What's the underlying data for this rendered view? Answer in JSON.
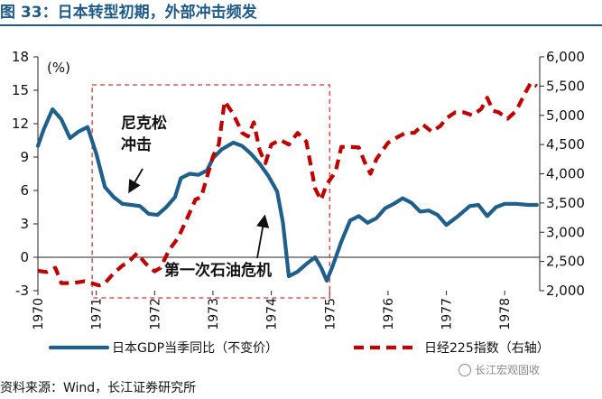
{
  "title": "图 33：日本转型初期，外部冲击频发",
  "source": "资料来源：Wind，长江证券研究所",
  "watermark": "长江宏观固收",
  "colors": {
    "title": "#1e5a8a",
    "gdp": "#1f5f8b",
    "nikkei": "#c00000",
    "box": "#e0322f"
  },
  "chart_data": {
    "type": "line",
    "title": "",
    "x_ticks": [
      "1970",
      "1971",
      "1972",
      "1973",
      "1974",
      "1975",
      "1976",
      "1977",
      "1978"
    ],
    "x_range": [
      1970.0,
      1978.6
    ],
    "y_left": {
      "label": "(%)",
      "range": [
        -3,
        18
      ],
      "ticks": [
        "18",
        "15",
        "12",
        "9",
        "6",
        "3",
        "0",
        "-3"
      ]
    },
    "y_right": {
      "label": "",
      "range": [
        2000,
        6000
      ],
      "ticks": [
        "6,000",
        "5,500",
        "5,000",
        "4,500",
        "4,000",
        "3,500",
        "3,000",
        "2,500",
        "2,000"
      ]
    },
    "series": [
      {
        "name": "日本GDP当季同比（不变价）",
        "axis": "left",
        "style": "solid",
        "points": [
          [
            1970.0,
            10.0
          ],
          [
            1970.1,
            11.5
          ],
          [
            1970.25,
            13.3
          ],
          [
            1970.4,
            12.4
          ],
          [
            1970.55,
            10.7
          ],
          [
            1970.7,
            11.3
          ],
          [
            1970.85,
            11.7
          ],
          [
            1971.0,
            9.3
          ],
          [
            1971.15,
            6.3
          ],
          [
            1971.3,
            5.4
          ],
          [
            1971.45,
            4.8
          ],
          [
            1971.6,
            4.7
          ],
          [
            1971.75,
            4.6
          ],
          [
            1971.9,
            3.9
          ],
          [
            1972.05,
            3.8
          ],
          [
            1972.2,
            4.5
          ],
          [
            1972.35,
            5.4
          ],
          [
            1972.45,
            7.1
          ],
          [
            1972.6,
            7.5
          ],
          [
            1972.75,
            7.4
          ],
          [
            1972.9,
            7.8
          ],
          [
            1973.0,
            8.9
          ],
          [
            1973.15,
            9.7
          ],
          [
            1973.35,
            10.3
          ],
          [
            1973.5,
            10.0
          ],
          [
            1973.65,
            9.3
          ],
          [
            1973.8,
            8.4
          ],
          [
            1973.95,
            7.3
          ],
          [
            1974.1,
            5.9
          ],
          [
            1974.2,
            3.1
          ],
          [
            1974.3,
            -1.7
          ],
          [
            1974.45,
            -1.3
          ],
          [
            1974.6,
            -0.6
          ],
          [
            1974.75,
            0.0
          ],
          [
            1974.85,
            -0.9
          ],
          [
            1974.95,
            -2.1
          ],
          [
            1975.05,
            -0.8
          ],
          [
            1975.2,
            1.4
          ],
          [
            1975.35,
            3.3
          ],
          [
            1975.5,
            3.7
          ],
          [
            1975.65,
            3.1
          ],
          [
            1975.8,
            3.5
          ],
          [
            1975.95,
            4.4
          ],
          [
            1976.1,
            4.8
          ],
          [
            1976.25,
            5.3
          ],
          [
            1976.4,
            4.9
          ],
          [
            1976.55,
            4.1
          ],
          [
            1976.7,
            4.2
          ],
          [
            1976.85,
            3.8
          ],
          [
            1977.0,
            2.9
          ],
          [
            1977.2,
            3.7
          ],
          [
            1977.4,
            4.6
          ],
          [
            1977.55,
            4.7
          ],
          [
            1977.7,
            3.7
          ],
          [
            1977.85,
            4.5
          ],
          [
            1978.0,
            4.8
          ],
          [
            1978.2,
            4.8
          ],
          [
            1978.4,
            4.7
          ],
          [
            1978.55,
            4.7
          ]
        ]
      },
      {
        "name": "日经225指数（右轴）",
        "axis": "right",
        "style": "dashed",
        "points": [
          [
            1970.0,
            2340
          ],
          [
            1970.15,
            2320
          ],
          [
            1970.3,
            2390
          ],
          [
            1970.4,
            2130
          ],
          [
            1970.6,
            2130
          ],
          [
            1970.8,
            2160
          ],
          [
            1970.95,
            2120
          ],
          [
            1971.05,
            2090
          ],
          [
            1971.15,
            2130
          ],
          [
            1971.3,
            2300
          ],
          [
            1971.45,
            2430
          ],
          [
            1971.55,
            2490
          ],
          [
            1971.7,
            2640
          ],
          [
            1971.85,
            2460
          ],
          [
            1972.0,
            2330
          ],
          [
            1972.1,
            2390
          ],
          [
            1972.25,
            2700
          ],
          [
            1972.4,
            2900
          ],
          [
            1972.55,
            3220
          ],
          [
            1972.7,
            3560
          ],
          [
            1972.8,
            3600
          ],
          [
            1972.85,
            3780
          ],
          [
            1973.0,
            4300
          ],
          [
            1973.1,
            4500
          ],
          [
            1973.2,
            5240
          ],
          [
            1973.35,
            5020
          ],
          [
            1973.5,
            4700
          ],
          [
            1973.6,
            4640
          ],
          [
            1973.7,
            4880
          ],
          [
            1973.8,
            4400
          ],
          [
            1973.9,
            4180
          ],
          [
            1974.0,
            4500
          ],
          [
            1974.15,
            4580
          ],
          [
            1974.3,
            4500
          ],
          [
            1974.45,
            4700
          ],
          [
            1974.6,
            4550
          ],
          [
            1974.75,
            3750
          ],
          [
            1974.85,
            3550
          ],
          [
            1974.95,
            3820
          ],
          [
            1975.1,
            4030
          ],
          [
            1975.2,
            4460
          ],
          [
            1975.35,
            4460
          ],
          [
            1975.5,
            4450
          ],
          [
            1975.6,
            4200
          ],
          [
            1975.7,
            4000
          ],
          [
            1975.8,
            4250
          ],
          [
            1976.0,
            4530
          ],
          [
            1976.15,
            4620
          ],
          [
            1976.3,
            4700
          ],
          [
            1976.45,
            4700
          ],
          [
            1976.6,
            4840
          ],
          [
            1976.75,
            4720
          ],
          [
            1976.9,
            4820
          ],
          [
            1977.0,
            4950
          ],
          [
            1977.15,
            5050
          ],
          [
            1977.3,
            5050
          ],
          [
            1977.45,
            5000
          ],
          [
            1977.6,
            5110
          ],
          [
            1977.7,
            5300
          ],
          [
            1977.8,
            5080
          ],
          [
            1977.9,
            5050
          ],
          [
            1978.05,
            4940
          ],
          [
            1978.2,
            5080
          ],
          [
            1978.35,
            5380
          ],
          [
            1978.45,
            5560
          ],
          [
            1978.55,
            5500
          ]
        ]
      }
    ],
    "annotations": [
      {
        "id": "nixon",
        "lines": [
          "尼克松",
          "冲击"
        ]
      },
      {
        "id": "oil",
        "lines": [
          "第一次石油危机"
        ]
      }
    ],
    "legend": {
      "position": "bottom"
    },
    "grid": false
  }
}
